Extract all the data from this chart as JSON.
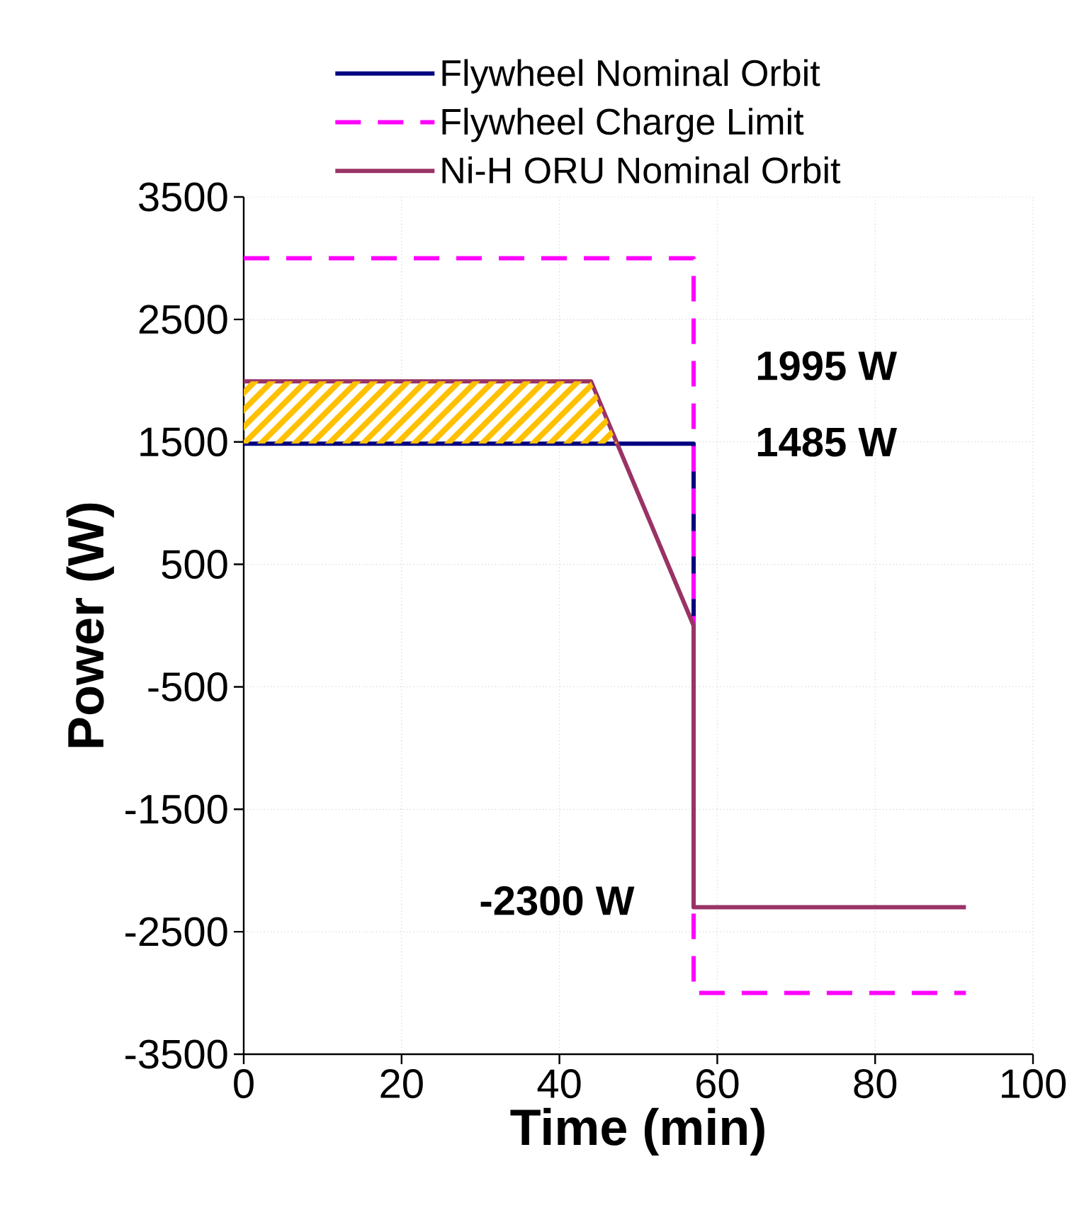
{
  "chart_data": {
    "type": "line",
    "xlabel": "Time (min)",
    "ylabel": "Power (W)",
    "xlim": [
      0,
      100
    ],
    "xticks": [
      0,
      20,
      40,
      60,
      80,
      100
    ],
    "ylim": [
      -3500,
      3500
    ],
    "yticks": [
      -3500,
      -2500,
      -1500,
      -500,
      500,
      1500,
      2500,
      3500
    ],
    "grid": true,
    "legend": "top",
    "marker": "none",
    "series": [
      {
        "name": "Flywheel Nominal Orbit",
        "color": "#000080",
        "line_style": "solid",
        "x": [
          0,
          57,
          57
        ],
        "values": [
          1485,
          1485,
          0
        ]
      },
      {
        "name": "Flywheel Charge Limit",
        "color": "#ff00ff",
        "line_style": "dashed",
        "x": [
          0,
          57,
          57,
          91.5
        ],
        "values": [
          3000,
          3000,
          -3000,
          -3000
        ]
      },
      {
        "name": "Ni-H ORU Nominal Orbit",
        "color": "#993366",
        "line_style": "solid",
        "x": [
          0,
          44,
          57,
          57,
          91.5
        ],
        "values": [
          1995,
          1995,
          0,
          -2300,
          -2300
        ]
      }
    ],
    "annotations": [
      "1995 W",
      "1485 W",
      "-2300 W"
    ]
  }
}
